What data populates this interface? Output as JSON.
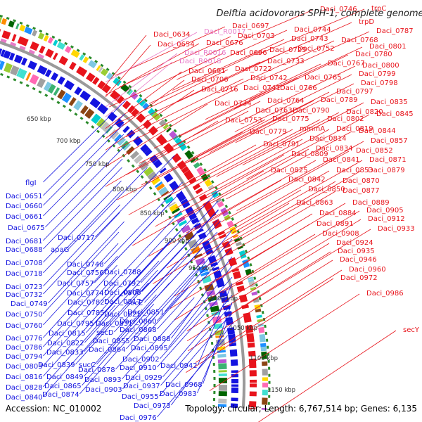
{
  "title": "Delftia acidovorans SPH-1, complete genome",
  "footer": {
    "accession": "Accession: NC_010002",
    "summary": "Topology: circular; Length: 6,767,514 bp; Genes: 6,135"
  },
  "colors": {
    "forward_strand": "#e8141c",
    "reverse_strand": "#1414e0",
    "rna": "#e87ac8",
    "backbone": "#9a9a9a",
    "dotted_ring": "#2a8a2a"
  },
  "tick_labels": [
    "650 kbp",
    "700 kbp",
    "750 kbp",
    "800 kbp",
    "850 kbp",
    "900 kbp",
    "950 kbp",
    "1000 kbp",
    "1050 kbp",
    "1100 kbp",
    "1150 kbp"
  ],
  "forward_labels": [
    "Daci_0746",
    "trpC",
    "trpD",
    "Daci_0697",
    "Daci_0744",
    "Daci_0787",
    "Daci_0634",
    "Daci_R0017",
    "Daci_0703",
    "Daci_0743",
    "Daci_0768",
    "Daci_0654",
    "Daci_0676",
    "Daci_0752",
    "Daci_0801",
    "Daci_R0016",
    "Daci_0725",
    "Daci_0780",
    "Daci_R0018",
    "Daci_0696",
    "Daci_0733",
    "Daci_0767",
    "Daci_0800",
    "Daci_0691",
    "Daci_0722",
    "Daci_0799",
    "Daci_0706",
    "Daci_0742",
    "Daci_0765",
    "Daci_0798",
    "Daci_0716",
    "Daci_0741",
    "Daci_0766",
    "Daci_0797",
    "Daci_0734",
    "Daci_0764",
    "Daci_0789",
    "Daci_0835",
    "Daci_0763",
    "Daci_0790",
    "Daci_0820",
    "Daci_0845",
    "Daci_0753",
    "Daci_0775",
    "Daci_0802",
    "Daci_0779",
    "mmmA",
    "Daci_0819",
    "Daci_0814",
    "Daci_0844",
    "Daci_0791",
    "Daci_0834",
    "Daci_0857",
    "Daci_0809",
    "Daci_0852",
    "Daci_0841",
    "Daci_0871",
    "Daci_0825",
    "Daci_0853",
    "Daci_0879",
    "Daci_0842",
    "Daci_0870",
    "Daci_0850",
    "Daci_0877",
    "Daci_0863",
    "Daci_0889",
    "Daci_0884",
    "Daci_0905",
    "Daci_0912",
    "Daci_0891",
    "Daci_0933",
    "Daci_0908",
    "Daci_0924",
    "Daci_0935",
    "Daci_0946",
    "Daci_0960",
    "Daci_0972",
    "Daci_0986",
    "secY"
  ],
  "reverse_labels": [
    "flgI",
    "Daci_0651",
    "Daci_0660",
    "Daci_0661",
    "Daci_0675",
    "Daci_0717",
    "Daci_0681",
    "Daci_0688",
    "apaG",
    "Daci_0708",
    "Daci_0748",
    "Daci_0718",
    "Daci_0756",
    "Daci_0788",
    "Daci_0723",
    "Daci_0757",
    "Daci_0792",
    "Daci_0732",
    "Daci_0774",
    "Daci_0808",
    "pyrF",
    "Daci_0749",
    "Daci_0782",
    "Daci_0817",
    "secE",
    "Daci_0750",
    "Daci_0785",
    "Daci_0821",
    "Daci_0851",
    "Daci_0760",
    "Daci_0795",
    "Daci_0831",
    "Daci_0860",
    "Daci_0815",
    "secD",
    "Daci_0868",
    "Daci_0776",
    "Daci_0822",
    "Daci_0855",
    "Daci_0888",
    "Daci_0786",
    "Daci_0833",
    "Daci_0864",
    "Daci_0895",
    "Daci_0794",
    "Daci_0839",
    "sucC",
    "Daci_0902",
    "Daci_0803",
    "Daci_0878",
    "Daci_0910",
    "Daci_0942",
    "Daci_0816",
    "Daci_0849",
    "Daci_0893",
    "Daci_0929",
    "Daci_0828",
    "Daci_0865",
    "Daci_0903",
    "Daci_0937",
    "Daci_0968",
    "Daci_0840",
    "Daci_0874",
    "Daci_0955",
    "Daci_0983",
    "Daci_0973",
    "Daci_0976"
  ]
}
